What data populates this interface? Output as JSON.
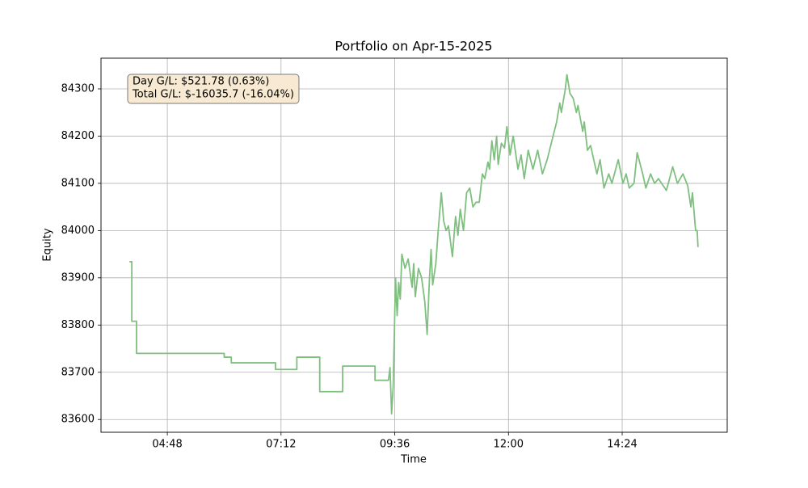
{
  "chart_data": {
    "type": "line",
    "title": "Portfolio on Apr-15-2025",
    "xlabel": "Time",
    "ylabel": "Equity",
    "annotation": [
      "Day G/L: $521.78 (0.63%)",
      "Total G/L: $-16035.7 (-16.04%)"
    ],
    "color": "#7fbf7f",
    "grid": true,
    "xlim": [
      204,
      997
    ],
    "ylim": [
      83573,
      84365
    ],
    "xticks": [
      {
        "value": 288,
        "label": "04:48"
      },
      {
        "value": 432,
        "label": "07:12"
      },
      {
        "value": 576,
        "label": "09:36"
      },
      {
        "value": 720,
        "label": "12:00"
      },
      {
        "value": 864,
        "label": "14:24"
      }
    ],
    "yticks": [
      83600,
      83700,
      83800,
      83900,
      84000,
      84100,
      84200,
      84300
    ],
    "x": [
      240,
      243,
      243,
      249,
      249,
      360,
      360,
      369,
      369,
      425,
      425,
      452,
      452,
      481,
      481,
      510,
      510,
      551,
      551,
      568,
      570,
      572,
      574,
      577,
      579,
      581,
      583,
      585,
      589,
      593,
      598,
      600,
      602,
      606,
      610,
      614,
      617,
      620,
      622,
      624,
      628,
      631,
      635,
      638,
      641,
      644,
      649,
      653,
      656,
      659,
      663,
      667,
      671,
      675,
      679,
      683,
      687,
      690,
      694,
      696,
      699,
      702,
      705,
      707,
      711,
      715,
      718,
      722,
      726,
      732,
      736,
      740,
      745,
      751,
      757,
      763,
      769,
      775,
      781,
      785,
      787,
      792,
      794,
      798,
      802,
      806,
      808,
      814,
      816,
      820,
      824,
      832,
      836,
      841,
      847,
      851,
      859,
      865,
      869,
      873,
      879,
      883,
      890,
      894,
      900,
      905,
      910,
      920,
      928,
      934,
      941,
      947,
      951,
      953,
      957,
      959,
      960
    ],
    "values": [
      83934,
      83934,
      83808,
      83808,
      83740,
      83740,
      83732,
      83732,
      83720,
      83720,
      83706,
      83706,
      83732,
      83732,
      83659,
      83659,
      83713,
      83713,
      83683,
      83683,
      83710,
      83612,
      83670,
      83900,
      83820,
      83890,
      83855,
      83950,
      83920,
      83940,
      83880,
      83930,
      83860,
      83920,
      83900,
      83850,
      83780,
      83900,
      83960,
      83885,
      83930,
      84000,
      84080,
      84020,
      84000,
      84010,
      83945,
      84030,
      83990,
      84045,
      84000,
      84080,
      84090,
      84050,
      84060,
      84060,
      84120,
      84110,
      84145,
      84130,
      84190,
      84150,
      84200,
      84140,
      84185,
      84175,
      84220,
      84160,
      84200,
      84130,
      84160,
      84110,
      84170,
      84130,
      84170,
      84120,
      84150,
      84190,
      84230,
      84270,
      84250,
      84300,
      84330,
      84290,
      84280,
      84250,
      84265,
      84210,
      84230,
      84170,
      84180,
      84120,
      84150,
      84090,
      84120,
      84100,
      84150,
      84100,
      84120,
      84090,
      84100,
      84165,
      84120,
      84090,
      84120,
      84100,
      84110,
      84085,
      84135,
      84100,
      84120,
      84095,
      84050,
      84080,
      84000,
      84000,
      83965
    ]
  }
}
